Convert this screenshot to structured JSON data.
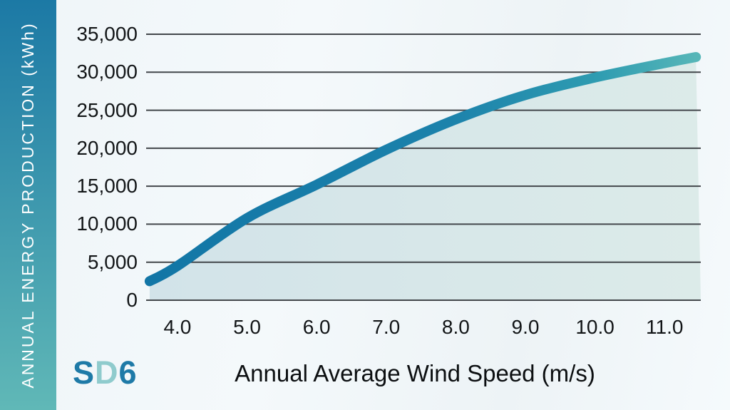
{
  "branding": {
    "model": "SD6",
    "letters": [
      "S",
      "D",
      "6"
    ],
    "letter_colors": [
      "#1e7aa7",
      "#8fcbcd",
      "#1e7aa7"
    ]
  },
  "sidebar": {
    "label": "ANNUAL ENERGY PRODUCTION (kWh)",
    "gradient_top": "#1c79a5",
    "gradient_bottom": "#60b8b7",
    "text_color": "#ffffff"
  },
  "chart_data": {
    "type": "area",
    "title": "",
    "xlabel": "Annual Average Wind Speed (m/s)",
    "ylabel": "ANNUAL ENERGY PRODUCTION (kWh)",
    "series": [
      {
        "name": "SD6",
        "x": [
          3.6,
          4.0,
          5.0,
          6.0,
          7.0,
          8.0,
          9.0,
          10.0,
          11.0,
          11.45
        ],
        "values": [
          2500,
          4500,
          10800,
          15200,
          19800,
          23800,
          27000,
          29300,
          31200,
          32000
        ]
      }
    ],
    "xticks": {
      "labels": [
        "4.0",
        "5.0",
        "6.0",
        "7.0",
        "8.0",
        "9.0",
        "10.0",
        "11.0"
      ],
      "values": [
        4,
        5,
        6,
        7,
        8,
        9,
        10,
        11
      ]
    },
    "yticks": {
      "labels": [
        "0",
        "5,000",
        "10,000",
        "15,000",
        "20,000",
        "25,000",
        "30,000",
        "35,000"
      ],
      "values": [
        0,
        5000,
        10000,
        15000,
        20000,
        25000,
        30000,
        35000
      ]
    },
    "xlim": [
      3.55,
      11.52
    ],
    "ylim": [
      0,
      35000
    ],
    "grid": "horizontal",
    "legend": "none",
    "colors": {
      "line_gradient": [
        "#1276a6",
        "#1c82ab",
        "#2f9cb1",
        "#56b6b8"
      ],
      "fill_left": "#d2e3e9",
      "fill_right": "#dcebe9",
      "gridline": "#43474b",
      "tick_text": "#121517",
      "background": "#f1f6f8"
    }
  }
}
